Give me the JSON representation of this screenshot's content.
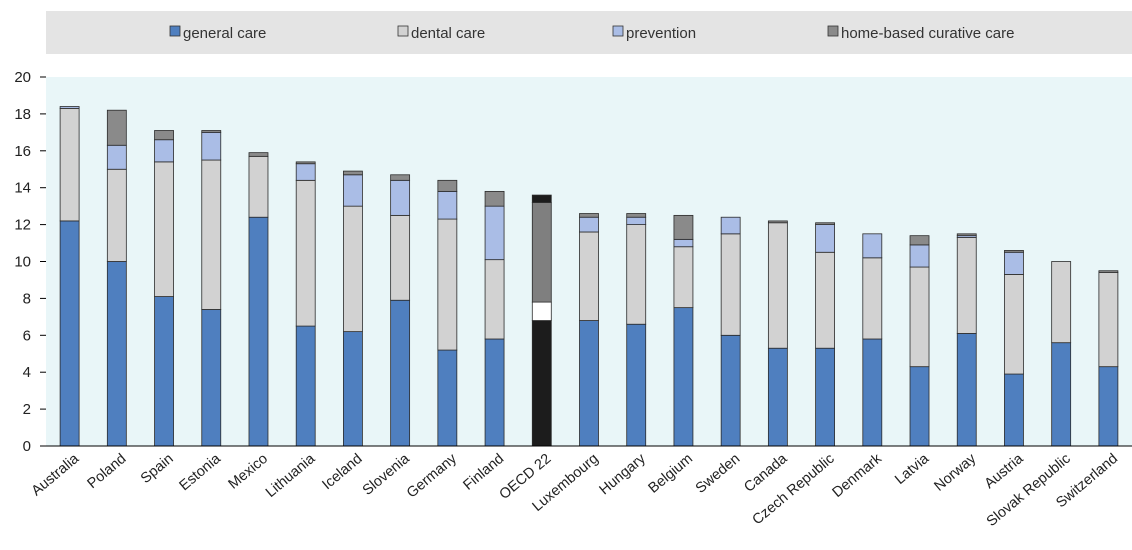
{
  "chart_data": {
    "type": "bar",
    "stacked": true,
    "categories": [
      "Australia",
      "Poland",
      "Spain",
      "Estonia",
      "Mexico",
      "Lithuania",
      "Iceland",
      "Slovenia",
      "Germany",
      "Finland",
      "OECD 22",
      "Luxembourg",
      "Hungary",
      "Belgium",
      "Sweden",
      "Canada",
      "Czech Republic",
      "Denmark",
      "Latvia",
      "Norway",
      "Austria",
      "Slovak Republic",
      "Switzerland"
    ],
    "series": [
      {
        "name": "general care",
        "color": "#4f7fbf",
        "values": [
          12.2,
          10.0,
          8.1,
          7.4,
          12.4,
          6.5,
          6.2,
          7.9,
          5.2,
          5.8,
          6.8,
          6.8,
          6.6,
          7.5,
          6.0,
          5.3,
          5.3,
          5.8,
          4.3,
          6.1,
          3.9,
          5.6,
          4.3
        ]
      },
      {
        "name": "dental care",
        "color": "#d2d2d2",
        "values": [
          6.1,
          5.0,
          7.3,
          8.1,
          3.3,
          7.9,
          6.8,
          4.6,
          7.1,
          4.3,
          0.0,
          4.8,
          5.4,
          3.3,
          5.5,
          6.8,
          5.2,
          4.4,
          5.4,
          5.2,
          5.4,
          4.4,
          5.1
        ]
      },
      {
        "name": "prevention",
        "color": "#aabde6",
        "values": [
          0.1,
          1.3,
          1.2,
          1.5,
          0.0,
          0.9,
          1.7,
          1.9,
          1.5,
          2.9,
          1.0,
          0.8,
          0.4,
          0.4,
          0.9,
          0.0,
          1.5,
          1.3,
          1.2,
          0.1,
          1.2,
          0.0,
          0.0
        ]
      },
      {
        "name": "home-based curative care",
        "color": "#8a8a8a",
        "values": [
          0.0,
          1.9,
          0.5,
          0.1,
          0.2,
          0.1,
          0.2,
          0.3,
          0.6,
          0.8,
          5.4,
          0.2,
          0.2,
          1.3,
          0.0,
          0.1,
          0.1,
          0.0,
          0.5,
          0.1,
          0.1,
          0.0,
          0.1
        ]
      }
    ],
    "highlight": {
      "category": "OECD 22",
      "colors": {
        "general care": "#1c1c1c",
        "dental care": "#ffffff",
        "prevention": "#ffffff",
        "home-based curative care": "#7f7f7f"
      },
      "top_cap": {
        "value": 0.4,
        "color": "#1c1c1c"
      }
    },
    "ylim": [
      0,
      20
    ],
    "yticks": [
      0,
      2,
      4,
      6,
      8,
      10,
      12,
      14,
      16,
      18,
      20
    ],
    "legend_position": "top",
    "grid": false,
    "plot_background": "#e9f6f8",
    "legend_background": "#e4e4e4"
  }
}
